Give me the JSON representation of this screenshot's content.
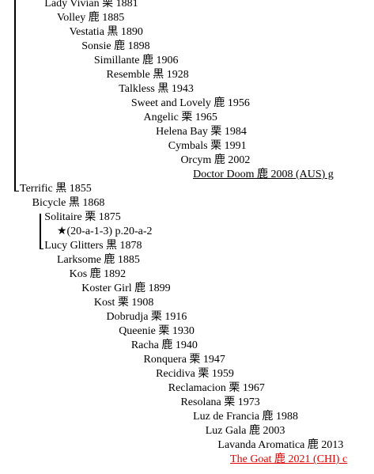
{
  "entries": [
    "Lady Vivian 栗 1881",
    "Volley 鹿 1885",
    "Vestatia 黒 1890",
    "Sonsie 鹿 1898",
    "Simillante 鹿 1906",
    "Resemble 黒 1928",
    "Talkless 黒 1943",
    "Sweet and Lovely 鹿 1956",
    "Angelic 栗 1965",
    "Helena Bay 栗 1984",
    "Cymbals 栗 1991",
    "Orcym 鹿 2002",
    "Doctor Doom 鹿 2008 (AUS) g",
    "Terrific 黒 1855",
    "Bicycle 黒 1868",
    "Solitaire 栗 1875",
    "★(20-a-1-3) p.20-a-2",
    "Lucy Glitters 黒 1878",
    "Larksome 鹿 1885",
    "Kos 鹿 1892",
    "Koster Girl 鹿 1899",
    "Kost 栗 1908",
    "Dobrudja 栗 1916",
    "Queenie 栗 1930",
    "Racha 鹿 1940",
    "Ronquera 栗 1947",
    "Recidiva 栗 1959",
    "Reclamacion 栗 1967",
    "Resolana 栗 1973",
    "Luz de Francia 鹿 1988",
    "Luz Gala 鹿 2003",
    "Lavanda Aromatica 鹿 2013",
    "The Goat 鹿 2021 (CHI) c"
  ]
}
